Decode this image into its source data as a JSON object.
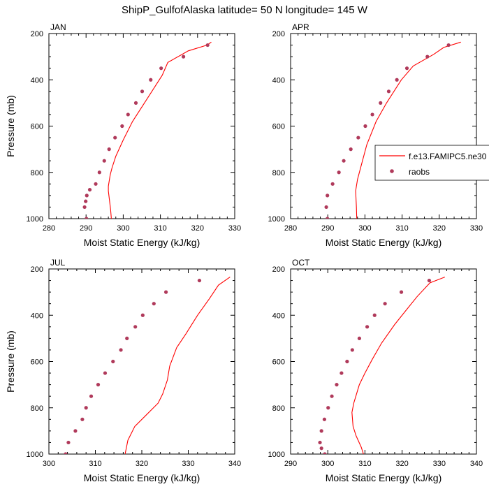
{
  "title": "ShipP_GulfofAlaska  latitude= 50 N longitude= 145 W",
  "legend": {
    "model_label": "f.e13.FAMIPC5.ne30",
    "obs_label": "raobs"
  },
  "colors": {
    "model": "#ff0000",
    "obs": "#b03a5b",
    "axis": "#000000"
  },
  "chart_data": [
    {
      "type": "line",
      "panel": "JAN",
      "xlabel": "Moist Static Energy (kJ/kg)",
      "ylabel": "Pressure (mb)",
      "xlim": [
        280,
        330
      ],
      "ylim": [
        1000,
        200
      ],
      "xticks": [
        280,
        290,
        300,
        310,
        320,
        330
      ],
      "yticks": [
        200,
        400,
        600,
        800,
        1000
      ],
      "series": [
        {
          "name": "f.e13.FAMIPC5.ne30",
          "kind": "line",
          "x": [
            323.7,
            322.5,
            317.5,
            312,
            310.5,
            306.5,
            302.5,
            300,
            298,
            297,
            296.5,
            296,
            296,
            296.3,
            296.6,
            296.8
          ],
          "y": [
            237,
            250,
            275,
            325,
            380,
            480,
            580,
            660,
            730,
            780,
            810,
            860,
            880,
            920,
            960,
            1000
          ]
        },
        {
          "name": "raobs",
          "kind": "scatter",
          "x": [
            322.7,
            316.2,
            310.2,
            307.4,
            305.1,
            303.4,
            301.3,
            299.7,
            297.8,
            296.2,
            294.9,
            293.6,
            292.6,
            291,
            290.2,
            289.9,
            289.6,
            290.1
          ],
          "y": [
            250,
            300,
            350,
            400,
            450,
            500,
            550,
            600,
            650,
            700,
            750,
            800,
            850,
            875,
            900,
            925,
            950,
            1000
          ]
        }
      ]
    },
    {
      "type": "line",
      "panel": "APR",
      "xlabel": "Moist Static Energy (kJ/kg)",
      "ylabel": "",
      "xlim": [
        280,
        330
      ],
      "ylim": [
        1000,
        200
      ],
      "xticks": [
        280,
        290,
        300,
        310,
        320,
        330
      ],
      "yticks": [
        200,
        400,
        600,
        800,
        1000
      ],
      "series": [
        {
          "name": "f.e13.FAMIPC5.ne30",
          "kind": "line",
          "x": [
            325.8,
            321.2,
            318.5,
            313,
            309.8,
            305.8,
            303,
            300.5,
            299,
            298,
            297.5,
            297.7,
            297.8
          ],
          "y": [
            237,
            260,
            290,
            340,
            400,
            500,
            580,
            680,
            770,
            830,
            880,
            950,
            1000
          ]
        },
        {
          "name": "raobs",
          "kind": "scatter",
          "x": [
            322.5,
            316.8,
            311.3,
            308.6,
            306.4,
            304.2,
            302,
            300.1,
            298.2,
            296.2,
            294.3,
            293,
            291.3,
            289.9,
            289.6,
            289.9
          ],
          "y": [
            250,
            300,
            350,
            400,
            450,
            500,
            550,
            600,
            650,
            700,
            750,
            800,
            850,
            900,
            950,
            1000
          ]
        }
      ]
    },
    {
      "type": "line",
      "panel": "JUL",
      "xlabel": "Moist Static Energy (kJ/kg)",
      "ylabel": "Pressure (mb)",
      "xlim": [
        300,
        340
      ],
      "ylim": [
        1000,
        200
      ],
      "xticks": [
        300,
        310,
        320,
        330,
        340
      ],
      "yticks": [
        200,
        400,
        600,
        800,
        1000
      ],
      "series": [
        {
          "name": "f.e13.FAMIPC5.ne30",
          "kind": "line",
          "x": [
            339,
            336.5,
            334.5,
            332,
            329.5,
            327.5,
            326,
            325.5,
            324.5,
            323.5,
            321,
            318.5,
            317,
            316.3
          ],
          "y": [
            235,
            270,
            330,
            400,
            480,
            540,
            620,
            680,
            740,
            780,
            830,
            880,
            940,
            1010
          ]
        },
        {
          "name": "raobs",
          "kind": "scatter",
          "x": [
            332.4,
            325.2,
            322.6,
            320.2,
            318.6,
            316.8,
            315.5,
            313.8,
            312.1,
            310.6,
            309.1,
            308,
            307.2,
            305.7,
            304.2,
            303.6
          ],
          "y": [
            250,
            300,
            350,
            400,
            450,
            500,
            550,
            600,
            650,
            700,
            750,
            800,
            850,
            900,
            950,
            1000
          ]
        }
      ]
    },
    {
      "type": "line",
      "panel": "OCT",
      "xlabel": "Moist Static Energy (kJ/kg)",
      "ylabel": "",
      "xlim": [
        290,
        340
      ],
      "ylim": [
        1000,
        200
      ],
      "xticks": [
        290,
        300,
        310,
        320,
        330,
        340
      ],
      "yticks": [
        200,
        400,
        600,
        800,
        1000
      ],
      "series": [
        {
          "name": "f.e13.FAMIPC5.ne30",
          "kind": "line",
          "x": [
            331.5,
            327.5,
            324,
            321,
            318,
            314.5,
            312,
            310,
            308.5,
            307,
            306.5,
            306.8,
            307.6,
            309,
            309.6
          ],
          "y": [
            235,
            260,
            320,
            380,
            440,
            520,
            590,
            650,
            700,
            780,
            820,
            880,
            920,
            970,
            1000
          ]
        },
        {
          "name": "raobs",
          "kind": "scatter",
          "x": [
            327.3,
            319.8,
            315.4,
            312.6,
            310.6,
            308.5,
            306.6,
            305.2,
            303.7,
            302.4,
            301.1,
            300.1,
            299.1,
            298.3,
            297.9,
            298.3,
            299.2
          ],
          "y": [
            250,
            300,
            350,
            400,
            450,
            500,
            550,
            600,
            650,
            700,
            750,
            800,
            850,
            900,
            950,
            975,
            1000
          ]
        }
      ]
    }
  ]
}
